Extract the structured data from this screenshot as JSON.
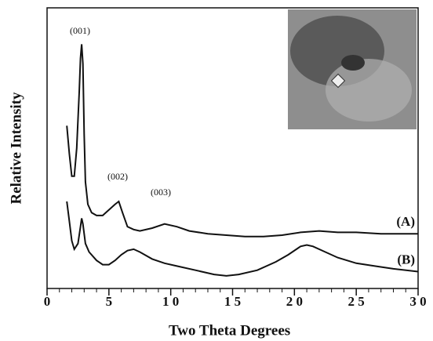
{
  "chart_data": {
    "type": "line",
    "xlabel": "Two Theta Degrees",
    "ylabel": "Relative Intensity",
    "xlim": [
      0,
      30
    ],
    "xticks": [
      0,
      5,
      {
        "value": 10,
        "label": "1 0"
      },
      {
        "value": 15,
        "label": "1 5"
      },
      {
        "value": 20,
        "label": "2 0"
      },
      {
        "value": 25,
        "label": "2 5"
      },
      {
        "value": 30,
        "label": "3 0"
      }
    ],
    "minor_xticks": [
      1,
      2,
      3,
      4,
      6,
      7,
      8,
      9,
      11,
      12,
      13,
      14,
      16,
      17,
      18,
      19,
      21,
      22,
      23,
      24,
      26,
      27,
      28,
      29
    ],
    "ylim": [
      0,
      100
    ],
    "annotations": [
      "(001)",
      "(002)",
      "(003)"
    ],
    "series": [
      {
        "name": "(A)",
        "color": "#111111",
        "x": [
          1.6,
          1.8,
          2.0,
          2.2,
          2.4,
          2.6,
          2.7,
          2.8,
          2.9,
          3.0,
          3.1,
          3.3,
          3.6,
          4.0,
          4.5,
          5.0,
          5.5,
          5.8,
          6.1,
          6.5,
          7.0,
          7.5,
          8.5,
          9.5,
          10.5,
          11.5,
          13,
          14.5,
          16,
          17.5,
          19,
          20.5,
          22,
          23.5,
          25,
          27,
          30
        ],
        "values": [
          58,
          48,
          40,
          40,
          50,
          70,
          82,
          87,
          80,
          55,
          38,
          30,
          27,
          26,
          26,
          28,
          30,
          31,
          27,
          22,
          21,
          20.5,
          21.5,
          23,
          22,
          20.5,
          19.5,
          19,
          18.5,
          18.5,
          19,
          20,
          20.5,
          20,
          20,
          19.5,
          19.5
        ]
      },
      {
        "name": "(B)",
        "color": "#111111",
        "x": [
          1.6,
          1.8,
          2.0,
          2.2,
          2.5,
          2.7,
          2.8,
          2.9,
          3.1,
          3.4,
          4.0,
          4.5,
          5.0,
          5.5,
          6.0,
          6.5,
          7.0,
          7.5,
          8.5,
          9.5,
          10.5,
          12,
          13.5,
          14.5,
          15.5,
          17,
          18.5,
          19.5,
          20.5,
          21,
          21.5,
          22.5,
          23.5,
          25,
          26.5,
          28,
          30
        ],
        "values": [
          31,
          24,
          17,
          14,
          16,
          22,
          25,
          23,
          16,
          13,
          10,
          8.5,
          8.5,
          10,
          12,
          13.5,
          14,
          13,
          10.5,
          9,
          8,
          6.5,
          5,
          4.5,
          5,
          6.5,
          9.5,
          12,
          15,
          15.5,
          15,
          13,
          11,
          9,
          8,
          7,
          6
        ]
      }
    ]
  }
}
